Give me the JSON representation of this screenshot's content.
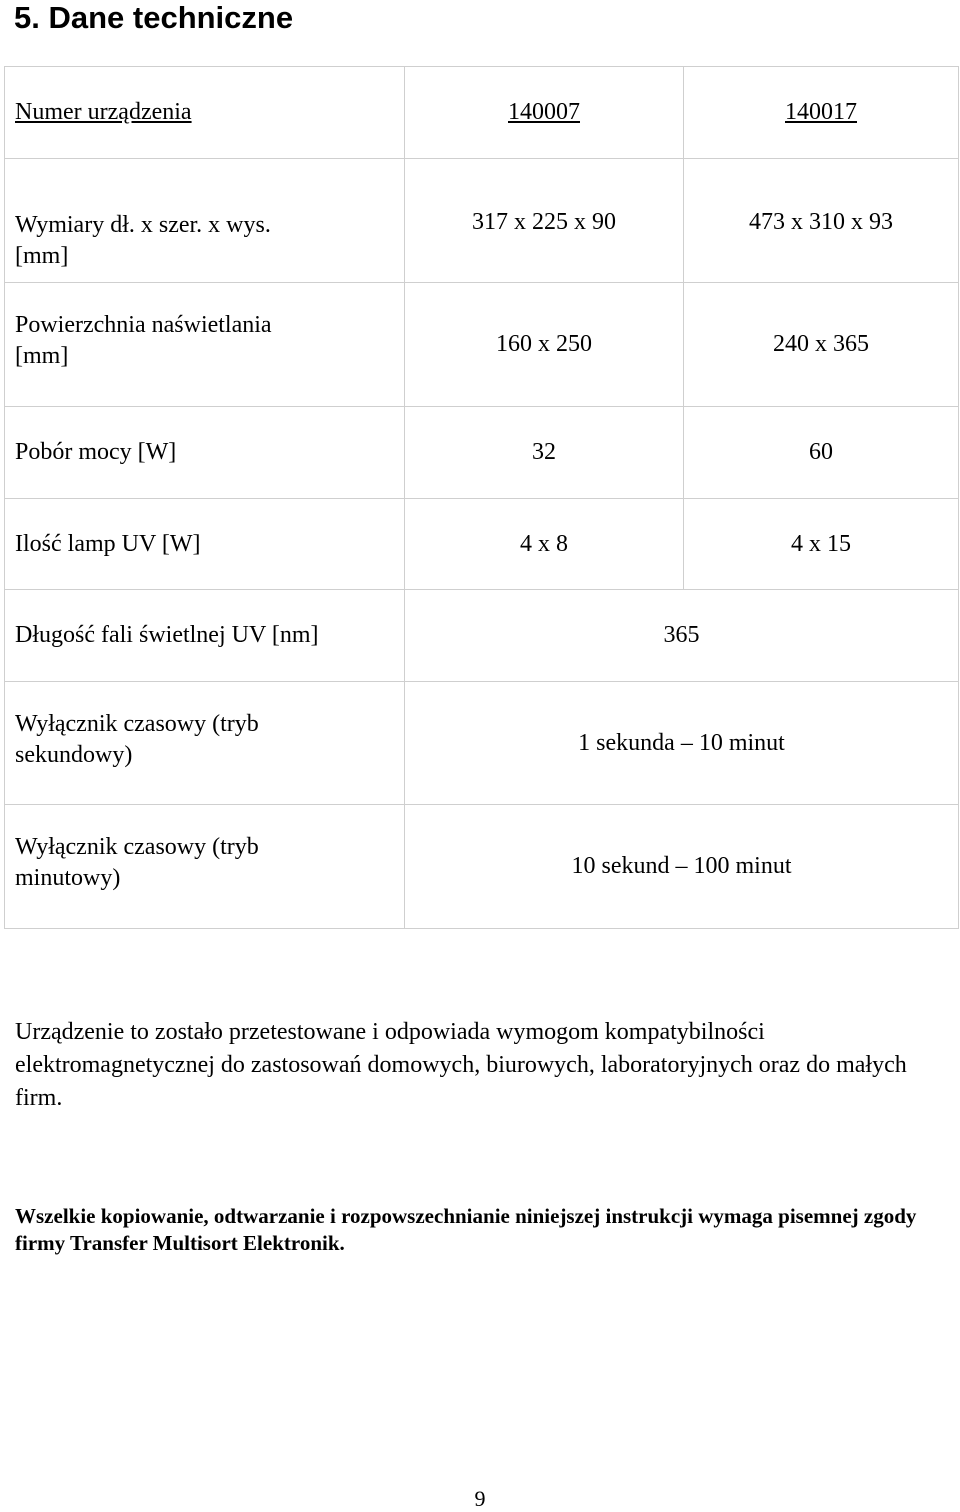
{
  "section_title": "5. Dane techniczne",
  "spec_table": {
    "header": {
      "label": "Numer urządzenia",
      "col1": "140007",
      "col2": "140017"
    },
    "rows": [
      {
        "label_line1": "Wymiary dł. x szer. x wys.",
        "label_line2": "[mm]",
        "col1": "317 x 225 x 90",
        "col2": "473 x 310 x 93"
      },
      {
        "label_line1": "Powierzchnia naświetlania",
        "label_line2": "[mm]",
        "col1": "160 x 250",
        "col2": "240 x 365"
      },
      {
        "label": "Pobór mocy [W]",
        "col1": "32",
        "col2": "60"
      },
      {
        "label": "Ilość lamp UV [W]",
        "col1": "4 x 8",
        "col2": "4 x 15"
      },
      {
        "label": "Długość fali świetlnej UV [nm]",
        "value": "365"
      },
      {
        "label_line1": "Wyłącznik czasowy (tryb",
        "label_line2": "sekundowy)",
        "value": "1 sekunda – 10 minut"
      },
      {
        "label_line1": "Wyłącznik czasowy (tryb",
        "label_line2": "minutowy)",
        "value": "10 sekund – 100 minut"
      }
    ]
  },
  "compliance_text": "Urządzenie to zostało przetestowane i odpowiada wymogom kompatybilności elektromagnetycznej do zastosowań domowych, biurowych, laboratoryjnych oraz do małych firm.",
  "copyright_notice": "Wszelkie kopiowanie, odtwarzanie i rozpowszechnianie niniejszej instrukcji wymaga pisemnej zgody firmy Transfer Multisort Elektronik.",
  "page_number": "9"
}
